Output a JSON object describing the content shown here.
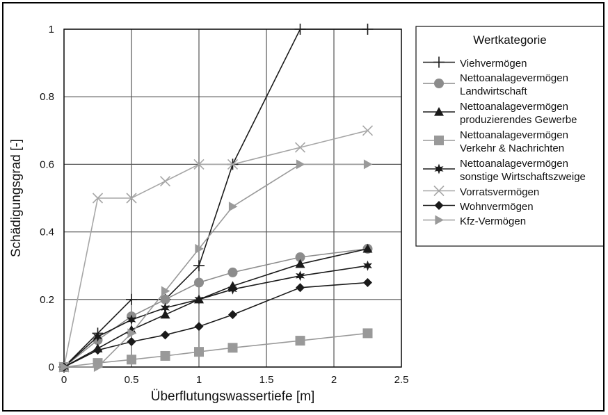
{
  "chart_data": {
    "type": "line",
    "xlabel": "Überflutungswassertiefe [m]",
    "ylabel": "Schädigungsgrad  [-]",
    "xlim": [
      0,
      2.5
    ],
    "ylim": [
      0,
      1
    ],
    "xticks": [
      "0",
      "0.5",
      "1",
      "1.5",
      "2",
      "2.5"
    ],
    "yticks": [
      "0",
      "0.2",
      "0.4",
      "0.6",
      "0.8",
      "1"
    ],
    "grid": true,
    "legend": {
      "title": "Wertkategorie",
      "placement": "right"
    },
    "series": [
      {
        "name": [
          "Viehvermögen"
        ],
        "color": "#1a1a1a",
        "marker": "plus",
        "points": [
          [
            0,
            0
          ],
          [
            0.25,
            0.1
          ],
          [
            0.5,
            0.2
          ],
          [
            0.75,
            0.2
          ],
          [
            1,
            0.3
          ],
          [
            1.25,
            0.6
          ],
          [
            1.75,
            1
          ],
          [
            2.25,
            1
          ]
        ]
      },
      {
        "name": [
          "Nettoanalagevermögen",
          "Landwirtschaft"
        ],
        "color": "#8c8c8c",
        "marker": "circle",
        "points": [
          [
            0,
            0
          ],
          [
            0.25,
            0.08
          ],
          [
            0.5,
            0.15
          ],
          [
            0.75,
            0.2
          ],
          [
            1,
            0.25
          ],
          [
            1.25,
            0.28
          ],
          [
            1.75,
            0.325
          ],
          [
            2.25,
            0.35
          ]
        ]
      },
      {
        "name": [
          "Nettoanalagevermögen",
          "produzierendes Gewerbe"
        ],
        "color": "#1a1a1a",
        "marker": "triangle",
        "points": [
          [
            0,
            0
          ],
          [
            0.25,
            0.055
          ],
          [
            0.5,
            0.11
          ],
          [
            0.75,
            0.155
          ],
          [
            1,
            0.2
          ],
          [
            1.25,
            0.24
          ],
          [
            1.75,
            0.305
          ],
          [
            2.25,
            0.35
          ]
        ]
      },
      {
        "name": [
          "Nettoanalagevermögen",
          "Verkehr & Nachrichten"
        ],
        "color": "#999999",
        "marker": "square",
        "points": [
          [
            0,
            0
          ],
          [
            0.25,
            0.012
          ],
          [
            0.5,
            0.022
          ],
          [
            0.75,
            0.033
          ],
          [
            1,
            0.045
          ],
          [
            1.25,
            0.057
          ],
          [
            1.75,
            0.078
          ],
          [
            2.25,
            0.1
          ]
        ]
      },
      {
        "name": [
          "Nettoanalagevermögen",
          "sonstige Wirtschaftszweige"
        ],
        "color": "#1a1a1a",
        "marker": "star",
        "points": [
          [
            0,
            0
          ],
          [
            0.25,
            0.09
          ],
          [
            0.5,
            0.14
          ],
          [
            0.75,
            0.175
          ],
          [
            1,
            0.2
          ],
          [
            1.25,
            0.23
          ],
          [
            1.75,
            0.27
          ],
          [
            2.25,
            0.3
          ]
        ]
      },
      {
        "name": [
          "Vorratsvermögen"
        ],
        "color": "#a6a6a6",
        "marker": "x",
        "points": [
          [
            0,
            0
          ],
          [
            0.25,
            0.5
          ],
          [
            0.5,
            0.5
          ],
          [
            0.75,
            0.55
          ],
          [
            1,
            0.6
          ],
          [
            1.25,
            0.6
          ],
          [
            1.75,
            0.65
          ],
          [
            2.25,
            0.7
          ]
        ]
      },
      {
        "name": [
          "Wohnvermögen"
        ],
        "color": "#1a1a1a",
        "marker": "diamond",
        "points": [
          [
            0,
            0
          ],
          [
            0.25,
            0.05
          ],
          [
            0.5,
            0.075
          ],
          [
            0.75,
            0.095
          ],
          [
            1,
            0.12
          ],
          [
            1.25,
            0.155
          ],
          [
            1.75,
            0.235
          ],
          [
            2.25,
            0.25
          ]
        ]
      },
      {
        "name": [
          "Kfz-Vermögen"
        ],
        "color": "#9a9a9a",
        "marker": "rtriangle",
        "points": [
          [
            0,
            0
          ],
          [
            0.25,
            0
          ],
          [
            0.5,
            0.1
          ],
          [
            0.75,
            0.225
          ],
          [
            1,
            0.35
          ],
          [
            1.25,
            0.475
          ],
          [
            1.75,
            0.6
          ],
          [
            2.25,
            0.6
          ]
        ]
      }
    ]
  }
}
